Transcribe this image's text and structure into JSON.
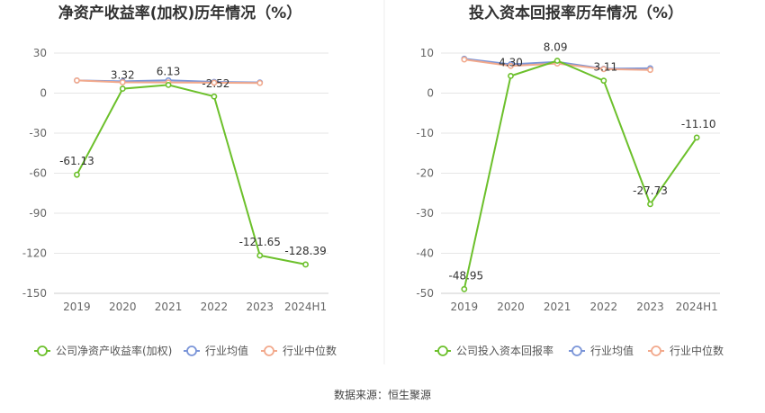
{
  "source_text": "数据来源：恒生聚源",
  "colors": {
    "company": "#6cc02b",
    "avg": "#7b95d8",
    "median": "#f2a98c",
    "grid": "#e6e6e6",
    "axis": "#cccccc"
  },
  "chart_data": [
    {
      "type": "line",
      "title": "净资产收益率(加权)历年情况（%）",
      "categories": [
        "2019",
        "2020",
        "2021",
        "2022",
        "2023",
        "2024H1"
      ],
      "ylim": [
        -150,
        30
      ],
      "yticks": [
        30,
        0,
        -30,
        -60,
        -90,
        -120,
        -150
      ],
      "grid": true,
      "legend_position": "bottom",
      "series": [
        {
          "name": "公司净资产收益率(加权)",
          "color_key": "company",
          "values": [
            -61.13,
            3.32,
            6.13,
            -2.52,
            -121.65,
            -128.39
          ],
          "labels": [
            "-61.13",
            "3.32",
            "6.13",
            "-2.52",
            "-121.65",
            "-128.39"
          ]
        },
        {
          "name": "行业均值",
          "color_key": "avg",
          "values": [
            9.5,
            8.8,
            9.6,
            8.4,
            8.0,
            null
          ]
        },
        {
          "name": "行业中位数",
          "color_key": "median",
          "values": [
            9.5,
            8.1,
            8.0,
            7.8,
            7.6,
            null
          ]
        }
      ]
    },
    {
      "type": "line",
      "title": "投入资本回报率历年情况（%）",
      "categories": [
        "2019",
        "2020",
        "2021",
        "2022",
        "2023",
        "2024H1"
      ],
      "ylim": [
        -50,
        10
      ],
      "yticks": [
        10,
        0,
        -10,
        -20,
        -30,
        -40,
        -50
      ],
      "grid": true,
      "legend_position": "bottom",
      "series": [
        {
          "name": "公司投入资本回报率",
          "color_key": "company",
          "values": [
            -48.95,
            4.3,
            8.09,
            3.11,
            -27.73,
            -11.1
          ],
          "labels": [
            "-48.95",
            "4.30",
            "8.09",
            "3.11",
            "-27.73",
            "-11.10"
          ]
        },
        {
          "name": "行业均值",
          "color_key": "avg",
          "values": [
            8.6,
            7.2,
            7.8,
            6.1,
            6.2,
            null
          ]
        },
        {
          "name": "行业中位数",
          "color_key": "median",
          "values": [
            8.4,
            6.8,
            7.4,
            6.0,
            5.8,
            null
          ]
        }
      ]
    }
  ]
}
